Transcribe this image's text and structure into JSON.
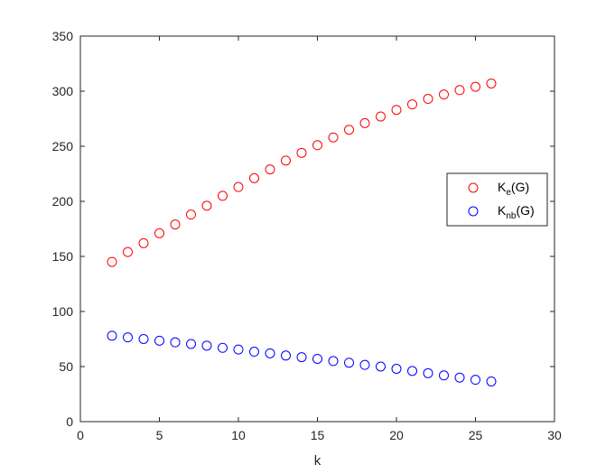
{
  "chart_data": {
    "type": "scatter",
    "title": "",
    "xlabel": "k",
    "ylabel": "",
    "xlim": [
      0,
      30
    ],
    "ylim": [
      0,
      350
    ],
    "xticks": [
      "0",
      "5",
      "10",
      "15",
      "20",
      "25",
      "30"
    ],
    "yticks": [
      "0",
      "50",
      "100",
      "150",
      "200",
      "250",
      "300",
      "350"
    ],
    "grid": false,
    "legend_position": "right",
    "x": [
      2,
      3,
      4,
      5,
      6,
      7,
      8,
      9,
      10,
      11,
      12,
      13,
      14,
      15,
      16,
      17,
      18,
      19,
      20,
      21,
      22,
      23,
      24,
      25,
      26
    ],
    "series": [
      {
        "name_main": "K",
        "name_sub": "e",
        "name_suffix": "(G)",
        "color": "#ff0000",
        "marker": "circle-open",
        "values": [
          145,
          154,
          162,
          171,
          179,
          188,
          196,
          205,
          213,
          221,
          229,
          237,
          244,
          251,
          258,
          265,
          271,
          277,
          283,
          288,
          293,
          297,
          301,
          304,
          307
        ]
      },
      {
        "name_main": "K",
        "name_sub": "nb",
        "name_suffix": "(G)",
        "color": "#0000ff",
        "marker": "circle-open",
        "values": [
          78,
          76.5,
          75,
          73.5,
          72,
          70.5,
          69,
          67,
          65.5,
          63.5,
          62,
          60,
          58.5,
          57,
          55,
          53.5,
          51.5,
          50,
          48,
          46,
          44,
          42,
          40,
          38,
          36.5
        ]
      }
    ]
  }
}
